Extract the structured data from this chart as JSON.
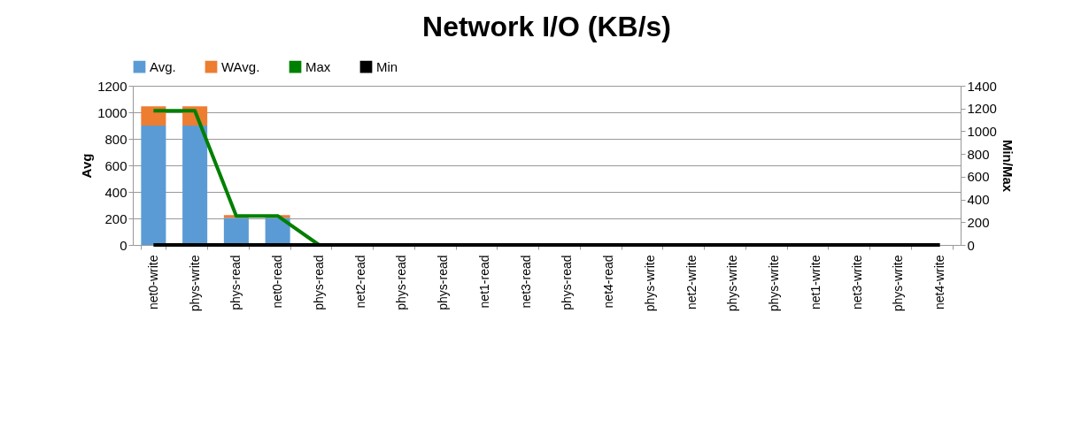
{
  "chart_data": {
    "type": "bar",
    "title": "Network I/O (KB/s)",
    "ylabel": "Avg",
    "y2label": "Min/Max",
    "stacked": true,
    "grid": "y",
    "legend": "top",
    "categories": [
      "net0-write",
      "phys-write",
      "phys-read",
      "net0-read",
      "phys-read",
      "net2-read",
      "phys-read",
      "phys-read",
      "net1-read",
      "net3-read",
      "phys-read",
      "net4-read",
      "phys-write",
      "net2-write",
      "phys-write",
      "phys-write",
      "net1-write",
      "net3-write",
      "phys-write",
      "net4-write"
    ],
    "ylim": [
      0,
      1200
    ],
    "yticks": [
      0,
      200,
      400,
      600,
      800,
      1000,
      1200
    ],
    "y2lim": [
      0,
      1400
    ],
    "y2ticks": [
      0,
      200,
      400,
      600,
      800,
      1000,
      1200,
      1400
    ],
    "series": [
      {
        "name": "Avg.",
        "type": "bar",
        "color": "#5b9bd5",
        "values": [
          900,
          900,
          205,
          205,
          0,
          0,
          0,
          0,
          0,
          0,
          0,
          0,
          0,
          0,
          0,
          0,
          0,
          0,
          0,
          0
        ]
      },
      {
        "name": "WAvg.",
        "type": "bar",
        "color": "#ed7d31",
        "values": [
          145,
          145,
          20,
          20,
          0,
          0,
          0,
          0,
          0,
          0,
          0,
          0,
          0,
          0,
          0,
          0,
          0,
          0,
          0,
          0
        ]
      },
      {
        "name": "Max",
        "type": "line",
        "axis": "y2",
        "color": "#008000",
        "values": [
          1180,
          1180,
          255,
          255,
          0,
          null,
          null,
          null,
          null,
          null,
          null,
          null,
          null,
          null,
          null,
          null,
          null,
          null,
          null,
          null
        ]
      },
      {
        "name": "Min",
        "type": "line",
        "axis": "y2",
        "color": "#000000",
        "values": [
          0,
          0,
          0,
          0,
          0,
          0,
          0,
          0,
          0,
          0,
          0,
          0,
          0,
          0,
          0,
          0,
          0,
          0,
          0,
          0
        ]
      }
    ]
  }
}
